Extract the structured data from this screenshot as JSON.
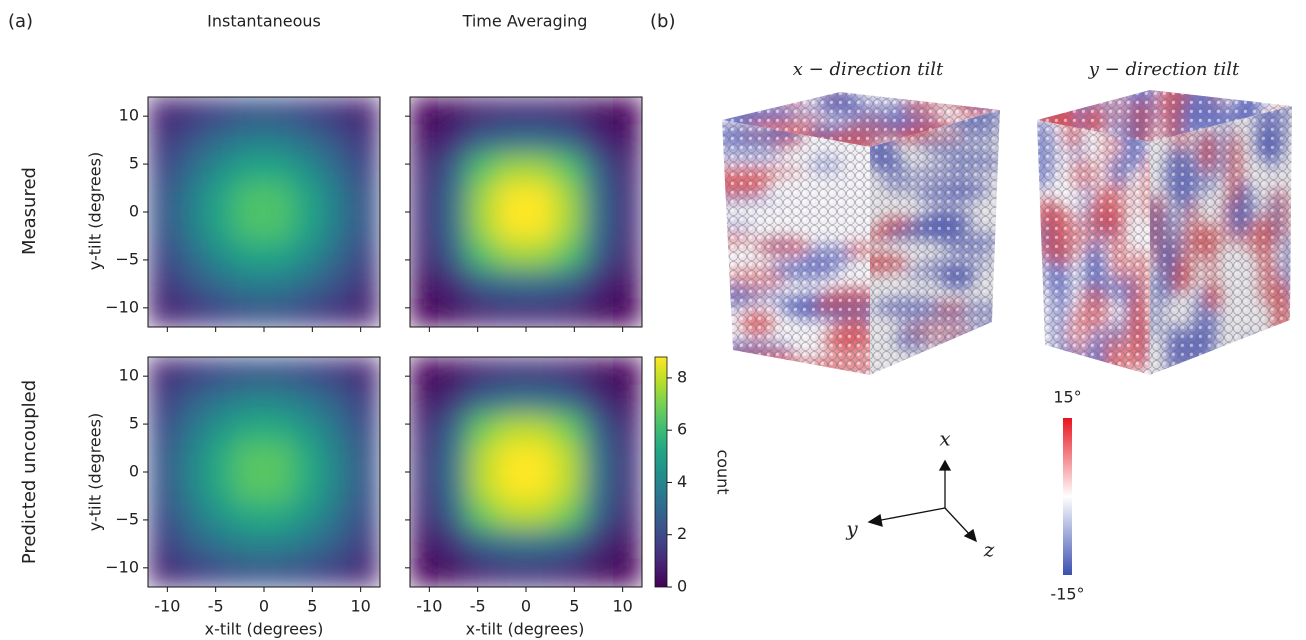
{
  "figure_a": {
    "label": "(a)",
    "column_titles": [
      "Instantaneous",
      "Time Averaging"
    ],
    "row_labels": [
      "Measured",
      "Predicted uncoupled"
    ],
    "x_label": "x-tilt (degrees)",
    "y_label": "y-tilt (degrees)",
    "colorbar": {
      "label": "count",
      "lim": [
        0,
        8.8
      ],
      "ticks": [
        0,
        2,
        4,
        6,
        8
      ],
      "colormap": "viridis"
    }
  },
  "chart_data": [
    {
      "type": "heatmap",
      "x": [
        -10.5,
        -7.5,
        -4.5,
        -1.5,
        1.5,
        4.5,
        7.5,
        10.5
      ],
      "y": [
        10.5,
        7.5,
        4.5,
        1.5,
        -1.5,
        -4.5,
        -7.5,
        -10.5
      ],
      "values": [
        [
          0.8,
          1.3,
          1.8,
          2.2,
          2.2,
          1.8,
          1.3,
          0.8
        ],
        [
          1.3,
          2.2,
          3.1,
          3.7,
          3.7,
          3.1,
          2.2,
          1.3
        ],
        [
          1.8,
          3.1,
          4.3,
          5.2,
          5.2,
          4.3,
          3.1,
          1.8
        ],
        [
          2.2,
          3.7,
          5.2,
          6.3,
          6.3,
          5.2,
          3.7,
          2.2
        ],
        [
          2.2,
          3.7,
          5.2,
          6.3,
          6.3,
          5.2,
          3.7,
          2.2
        ],
        [
          1.8,
          3.1,
          4.3,
          5.2,
          5.2,
          4.3,
          3.1,
          1.8
        ],
        [
          1.3,
          2.2,
          3.1,
          3.7,
          3.7,
          3.1,
          2.2,
          1.3
        ],
        [
          0.8,
          1.3,
          1.8,
          2.2,
          2.2,
          1.8,
          1.3,
          0.8
        ]
      ],
      "xlim": [
        -12,
        12
      ],
      "ylim": [
        -12,
        12
      ],
      "xticks": [
        -10,
        -5,
        0,
        5,
        10
      ],
      "yticks": [
        {
          "value": -10,
          "label": "−10"
        },
        {
          "value": -5,
          "label": "−5"
        },
        0,
        5,
        10
      ]
    },
    {
      "type": "heatmap",
      "x": [
        -10.5,
        -7.5,
        -4.5,
        -1.5,
        1.5,
        4.5,
        7.5,
        10.5
      ],
      "y": [
        10.5,
        7.5,
        4.5,
        1.5,
        -1.5,
        -4.5,
        -7.5,
        -10.5
      ],
      "values": [
        [
          0.1,
          0.4,
          0.9,
          1.1,
          1.1,
          0.9,
          0.4,
          0.1
        ],
        [
          0.4,
          1.1,
          2.6,
          3.1,
          3.1,
          2.6,
          1.1,
          0.4
        ],
        [
          0.9,
          2.6,
          6.4,
          7.5,
          7.5,
          6.4,
          2.6,
          0.9
        ],
        [
          1.1,
          3.1,
          7.5,
          8.8,
          8.8,
          7.5,
          3.1,
          1.1
        ],
        [
          1.1,
          3.1,
          7.5,
          8.8,
          8.8,
          7.5,
          3.1,
          1.1
        ],
        [
          0.9,
          2.6,
          6.4,
          7.5,
          7.5,
          6.4,
          2.6,
          0.9
        ],
        [
          0.4,
          1.1,
          2.6,
          3.1,
          3.1,
          2.6,
          1.1,
          0.4
        ],
        [
          0.1,
          0.4,
          0.9,
          1.1,
          1.1,
          0.9,
          0.4,
          0.1
        ]
      ],
      "xlim": [
        -12,
        12
      ],
      "ylim": [
        -12,
        12
      ],
      "xticks": [
        -10,
        -5,
        0,
        5,
        10
      ],
      "yticks": [
        -10,
        -5,
        0,
        5,
        10
      ]
    },
    {
      "type": "heatmap",
      "x": [
        -10.5,
        -7.5,
        -4.5,
        -1.5,
        1.5,
        4.5,
        7.5,
        10.5
      ],
      "y": [
        10.5,
        7.5,
        4.5,
        1.5,
        -1.5,
        -4.5,
        -7.5,
        -10.5
      ],
      "values": [
        [
          0.9,
          1.5,
          2.0,
          2.3,
          2.3,
          2.0,
          1.5,
          0.9
        ],
        [
          1.5,
          2.6,
          3.4,
          3.9,
          3.9,
          3.4,
          2.6,
          1.5
        ],
        [
          2.0,
          3.4,
          4.6,
          5.4,
          5.4,
          4.6,
          3.4,
          2.0
        ],
        [
          2.3,
          3.9,
          5.4,
          6.5,
          6.5,
          5.4,
          3.9,
          2.3
        ],
        [
          2.3,
          3.9,
          5.4,
          6.5,
          6.5,
          5.4,
          3.9,
          2.3
        ],
        [
          2.0,
          3.4,
          4.6,
          5.4,
          5.4,
          4.6,
          3.4,
          2.0
        ],
        [
          1.5,
          2.6,
          3.4,
          3.9,
          3.9,
          3.4,
          2.6,
          1.5
        ],
        [
          0.9,
          1.5,
          2.0,
          2.3,
          2.3,
          2.0,
          1.5,
          0.9
        ]
      ],
      "xlim": [
        -12,
        12
      ],
      "ylim": [
        -12,
        12
      ],
      "xticks": [
        -10,
        -5,
        0,
        5,
        10
      ],
      "yticks": [
        {
          "value": -10,
          "label": "−10"
        },
        {
          "value": -5,
          "label": "−5"
        },
        0,
        5,
        10
      ]
    },
    {
      "type": "heatmap",
      "x": [
        -10.5,
        -7.5,
        -4.5,
        -1.5,
        1.5,
        4.5,
        7.5,
        10.5
      ],
      "y": [
        10.5,
        7.5,
        4.5,
        1.5,
        -1.5,
        -4.5,
        -7.5,
        -10.5
      ],
      "values": [
        [
          0.1,
          0.4,
          1.0,
          1.2,
          1.2,
          1.0,
          0.4,
          0.1
        ],
        [
          0.4,
          1.2,
          2.8,
          3.3,
          3.3,
          2.8,
          1.2,
          0.4
        ],
        [
          1.0,
          2.8,
          6.8,
          7.8,
          7.8,
          6.8,
          2.8,
          1.0
        ],
        [
          1.2,
          3.3,
          7.8,
          8.9,
          8.9,
          7.8,
          3.3,
          1.2
        ],
        [
          1.2,
          3.3,
          7.8,
          8.9,
          8.9,
          7.8,
          3.3,
          1.2
        ],
        [
          1.0,
          2.8,
          6.8,
          7.8,
          7.8,
          6.8,
          2.8,
          1.0
        ],
        [
          0.4,
          1.2,
          2.8,
          3.3,
          3.3,
          2.8,
          1.2,
          0.4
        ],
        [
          0.1,
          0.4,
          1.0,
          1.2,
          1.2,
          1.0,
          0.4,
          0.1
        ]
      ],
      "xlim": [
        -12,
        12
      ],
      "ylim": [
        -12,
        12
      ],
      "xticks": [
        -10,
        -5,
        0,
        5,
        10
      ],
      "yticks": [
        -10,
        -5,
        0,
        5,
        10
      ]
    }
  ],
  "figure_b": {
    "label": "(b)",
    "titles": [
      "x − direction tilt",
      "y − direction tilt"
    ],
    "axes": [
      "x",
      "y",
      "z"
    ],
    "colorbar": {
      "lim": [
        -15,
        15
      ],
      "ticks": [
        {
          "value": 15,
          "label": "15°"
        },
        {
          "value": -15,
          "label": "-15°"
        }
      ]
    }
  }
}
